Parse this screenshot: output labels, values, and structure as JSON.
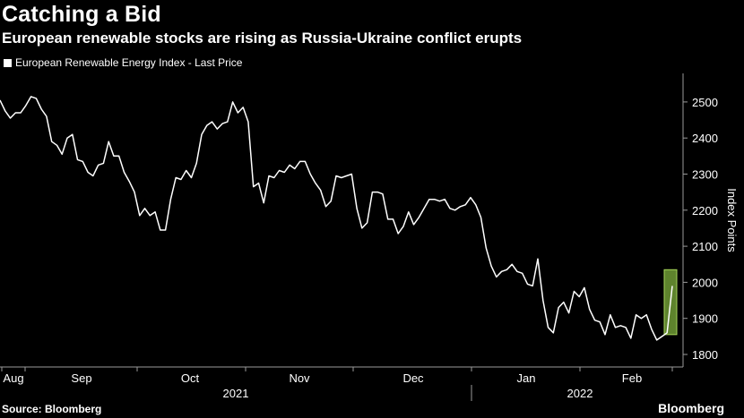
{
  "title": "Catching a Bid",
  "subtitle": "European renewable stocks are rising as Russia-Ukraine conflict erupts",
  "source": "Source: Bloomberg",
  "brand": "Bloomberg",
  "colors": {
    "background": "#000000",
    "line": "#ffffff",
    "highlight": "#8fbf3f"
  },
  "chart_data": {
    "type": "line",
    "legend": "European Renewable Energy Index - Last Price",
    "ylabel": "Index Points",
    "ylim": [
      1770,
      2580
    ],
    "yticks": [
      1800,
      1900,
      2000,
      2100,
      2200,
      2300,
      2400,
      2500
    ],
    "xticks": [
      "Aug",
      "Sep",
      "Oct",
      "Nov",
      "Dec",
      "Jan",
      "Feb"
    ],
    "years": [
      "2021",
      "2022"
    ],
    "grid": false,
    "highlight": {
      "from": 1855,
      "to": 2035
    },
    "series": [
      {
        "name": "European Renewable Energy Index - Last Price",
        "values": [
          2505,
          2475,
          2455,
          2470,
          2470,
          2490,
          2515,
          2510,
          2480,
          2460,
          2390,
          2380,
          2355,
          2400,
          2410,
          2340,
          2335,
          2305,
          2295,
          2325,
          2330,
          2390,
          2350,
          2350,
          2305,
          2280,
          2250,
          2185,
          2205,
          2185,
          2195,
          2145,
          2145,
          2230,
          2290,
          2285,
          2310,
          2290,
          2330,
          2410,
          2435,
          2445,
          2425,
          2440,
          2445,
          2500,
          2470,
          2485,
          2445,
          2265,
          2275,
          2220,
          2295,
          2290,
          2310,
          2305,
          2325,
          2315,
          2335,
          2335,
          2300,
          2275,
          2255,
          2210,
          2225,
          2295,
          2290,
          2295,
          2300,
          2205,
          2150,
          2165,
          2250,
          2250,
          2245,
          2175,
          2175,
          2135,
          2155,
          2195,
          2160,
          2180,
          2205,
          2230,
          2230,
          2225,
          2230,
          2205,
          2200,
          2210,
          2215,
          2235,
          2215,
          2180,
          2095,
          2045,
          2015,
          2030,
          2035,
          2050,
          2030,
          2025,
          1995,
          1990,
          2065,
          1950,
          1875,
          1860,
          1930,
          1945,
          1915,
          1975,
          1960,
          1985,
          1925,
          1895,
          1890,
          1855,
          1910,
          1875,
          1880,
          1875,
          1845,
          1910,
          1900,
          1910,
          1870,
          1840,
          1850,
          1860,
          1990
        ]
      }
    ]
  }
}
